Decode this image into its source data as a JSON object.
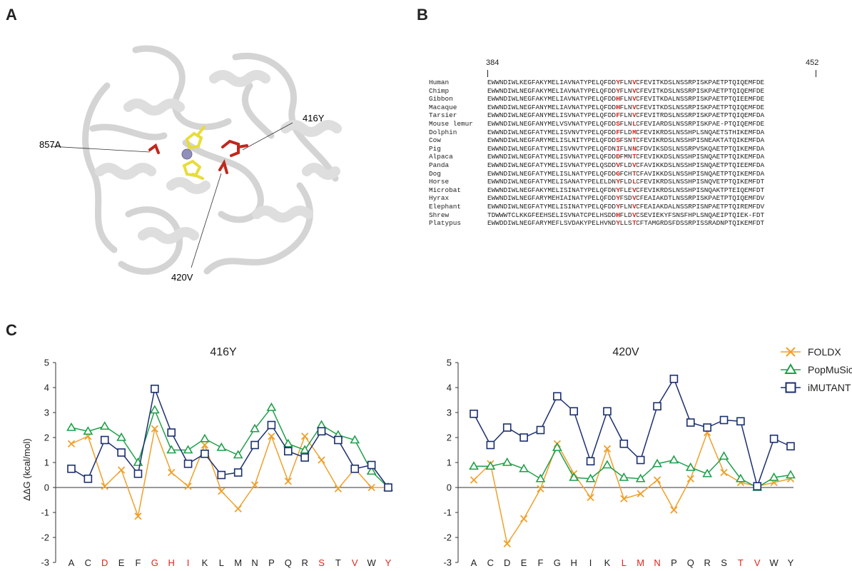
{
  "panels": {
    "a": "A",
    "b": "B",
    "c": "C"
  },
  "structure": {
    "labels": {
      "res_857": "857A",
      "res_416": "416Y",
      "res_420": "420V"
    },
    "colors": {
      "ribbon": "#e3e3e3",
      "ribbon_edge": "#cfcfcf",
      "ligand": "#e8dc3c",
      "mutation": "#c0271d",
      "metal": "#8f8fb8"
    }
  },
  "alignment": {
    "start": "384",
    "end": "452",
    "highlight_color": "#e0261e",
    "rows": [
      {
        "name": "Human",
        "seq": "EWWNDIWLKEGFAKYMELIAVNATYPELQFDDYFLNVCFEVITKDSLNSSRPISKPAETPTQIQEMFDE"
      },
      {
        "name": "Chimp",
        "seq": "EWWNDIWLNEGFAKYMELIAVNATYPELQFDDYFLNVCFEVITKDSLNSSRPISKPAETPTQIQEMFDE"
      },
      {
        "name": "Gibbon",
        "seq": "EWWNDIWLNEGFAKYMELIAVNATYPELQFDDHFLNVCFEVITKDALNSSRPISKPAETPTQIEEMFDE"
      },
      {
        "name": "Macaque",
        "seq": "EWWNDIWLNEGFANYMELIAVNATYPELQFDDHFLNVCFEVITKDSLNSSRPISKPAETPTQIQEMFDE"
      },
      {
        "name": "Tarsier",
        "seq": "EWWNDIWLNEGFANYMELISVNATYPELQFDDFFLNVCFEVITRDSLNSSRPISKPAETPTQIQEMFDA"
      },
      {
        "name": "Mouse lemur",
        "seq": "EWWNDIWLNEGFANYMELVSVNATYPELQFDDSFLNLCFEVIARDSLNSSRPISKPAE-PTQIQEMFDE"
      },
      {
        "name": "Dolphin",
        "seq": "EWWNDIWLNEGFATYMELISVNVTYPELQFDDFFLDMCFEVIKRDSLNSSHPLSNQAETSTHIKEMFDA"
      },
      {
        "name": "Cow",
        "seq": "EWWNDIWLNEGFARYMELISLNITYPELQFDDSFSNTCFEVIKRDSLNSSHPISNEAKTATQIKEMFDA"
      },
      {
        "name": "Pig",
        "seq": "EWWNDIWLNEGFATYMELISVNVTYPELQFDNIFLNNCFDVIKSDSLNSSRPVSKQAETPTQIKEMFDA"
      },
      {
        "name": "Alpaca",
        "seq": "EWWNDIWLNEGFATYMELISVNATYPELQFDDDFMNTCFEVIKKDSLNSSHPISNQAETPTQIKEMFDA"
      },
      {
        "name": "Panda",
        "seq": "EWWNDIWLNEGFATYMELISVNATYPELQSDDVFLDVCFAVIKKDSLNSSHPISNQAETPTQIEEMFDA"
      },
      {
        "name": "Dog",
        "seq": "EWWNDIWLNEGFATYMELISLNATYPELQFDDGFCHTCFAVIKKDSLNSSHPISNQAETPTQIKEMFDA"
      },
      {
        "name": "Horse",
        "seq": "EWWNDIWLNEGFATYMELISANATYPELELDNYFLDLCFEVIKRDSLNSSHPISNQVETPTQIKEMFDT"
      },
      {
        "name": "Microbat",
        "seq": "EWWNDIWLNEGFAKYMELISINATYPELQFDNYFLEVCFEVIKRDSLNSSHPISNQAKTPTEIQEMFDT"
      },
      {
        "name": "Hyrax",
        "seq": "EWWNDIWLNEGFARYMEHIAINATYPELQFDDYFSDVCFEAIAKDTLNSSRPISKPAETPTQIQEMFDV"
      },
      {
        "name": "Elephant",
        "seq": "EWWNDIWLNEGFATYMELISINATYPELQFDDYFLNVCFEAIAKDALNSSRPISNPAETPTQIREMFDV"
      },
      {
        "name": "Shrew",
        "seq": "TDWWWTCLKKGFEEHSELISVNATCPELHSDDHFLDVCSEVIEKYFSNSFHPLSNQAEIPTQIEK-FDT"
      },
      {
        "name": "Platypus",
        "seq": "EWWDDIWLNEGFARYMEFLSVDAKYPELHVNDYLLSTCFTAMGRDSFDSSRPISSRADNPTQIKEMFDT"
      }
    ]
  },
  "chart_data": [
    {
      "type": "line",
      "title": "416Y",
      "ylabel": "ΔΔG  (kcal/mol)",
      "ylim": [
        -3,
        5
      ],
      "yticks": [
        "-3",
        "-2",
        "-1",
        "0",
        "1",
        "2",
        "3",
        "4",
        "5"
      ],
      "categories": [
        "A",
        "C",
        "D",
        "E",
        "F",
        "G",
        "H",
        "I",
        "K",
        "L",
        "M",
        "N",
        "P",
        "Q",
        "R",
        "S",
        "T",
        "V",
        "W",
        "Y"
      ],
      "highlighted_categories": [
        "D",
        "G",
        "H",
        "I",
        "S",
        "V",
        "Y"
      ],
      "series": [
        {
          "name": "FOLDX",
          "color": "#f0a02a",
          "marker": "x",
          "values": [
            1.75,
            2.05,
            0.05,
            0.7,
            -1.15,
            2.35,
            0.6,
            0.05,
            1.7,
            -0.15,
            -0.85,
            0.1,
            2.05,
            0.25,
            2.05,
            1.1,
            -0.05,
            0.75,
            0.0,
            0.0
          ]
        },
        {
          "name": "PopMuSic",
          "color": "#1fa04a",
          "marker": "triangle",
          "values": [
            2.4,
            2.25,
            2.45,
            2.0,
            1.0,
            3.1,
            1.5,
            1.5,
            1.95,
            1.6,
            1.3,
            2.35,
            3.2,
            1.75,
            1.5,
            2.5,
            2.1,
            1.9,
            0.65,
            0.0
          ]
        },
        {
          "name": "iMUTANT",
          "color": "#1b2f6e",
          "marker": "square",
          "values": [
            0.75,
            0.35,
            1.9,
            1.4,
            0.55,
            3.95,
            2.2,
            0.95,
            1.35,
            0.5,
            0.6,
            1.7,
            2.5,
            1.45,
            1.2,
            2.25,
            1.9,
            0.75,
            0.9,
            0.0
          ]
        }
      ]
    },
    {
      "type": "line",
      "title": "420V",
      "ylim": [
        -3,
        5
      ],
      "yticks": [
        "-3",
        "-2",
        "-1",
        "0",
        "1",
        "2",
        "3",
        "4",
        "5"
      ],
      "categories": [
        "A",
        "C",
        "D",
        "E",
        "F",
        "G",
        "H",
        "I",
        "K",
        "L",
        "M",
        "N",
        "P",
        "Q",
        "R",
        "S",
        "T",
        "V",
        "W",
        "Y"
      ],
      "highlighted_categories": [
        "L",
        "M",
        "N",
        "T",
        "V"
      ],
      "legend": "top-right",
      "series": [
        {
          "name": "FOLDX",
          "color": "#f0a02a",
          "marker": "x",
          "values": [
            0.3,
            0.95,
            -2.25,
            -1.25,
            -0.05,
            1.75,
            0.55,
            -0.4,
            1.55,
            -0.45,
            -0.25,
            0.3,
            -0.9,
            0.35,
            2.2,
            0.6,
            0.2,
            0.05,
            0.2,
            0.35
          ]
        },
        {
          "name": "PopMuSic",
          "color": "#1fa04a",
          "marker": "triangle",
          "values": [
            0.85,
            0.85,
            1.0,
            0.75,
            0.35,
            1.6,
            0.4,
            0.35,
            0.9,
            0.4,
            0.35,
            0.95,
            1.1,
            0.8,
            0.55,
            1.25,
            0.35,
            0.0,
            0.4,
            0.5
          ]
        },
        {
          "name": "iMUTANT",
          "color": "#1b2f6e",
          "marker": "square",
          "values": [
            2.95,
            1.7,
            2.4,
            2.0,
            2.3,
            3.65,
            3.05,
            1.05,
            3.05,
            1.75,
            1.1,
            3.25,
            4.35,
            2.6,
            2.4,
            2.7,
            2.65,
            0.05,
            1.95,
            1.65
          ]
        }
      ]
    }
  ]
}
